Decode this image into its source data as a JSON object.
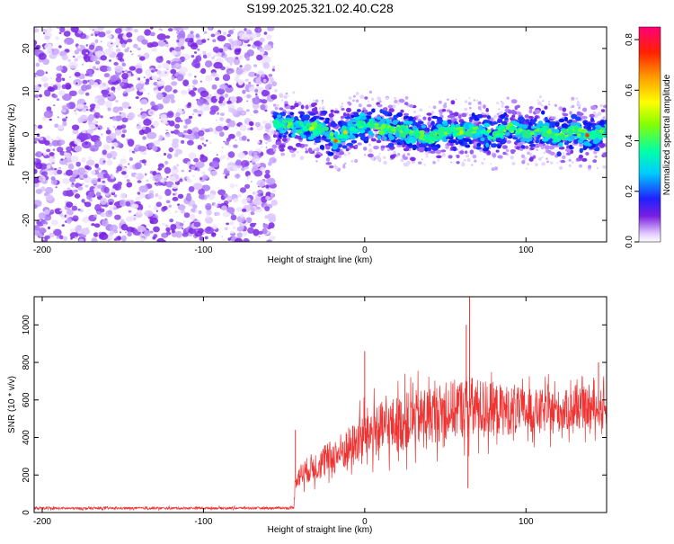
{
  "title": "S199.2025.321.02.40.C28",
  "chart_data": [
    {
      "type": "heatmap",
      "xlabel": "Height of straight line (km)",
      "ylabel": "Frequency (Hz)",
      "xlim": [
        -205,
        150
      ],
      "ylim": [
        -25,
        25
      ],
      "xticks": [
        -200,
        -100,
        0,
        100
      ],
      "xtick_labels": [
        "-200",
        "-100",
        "0",
        "100"
      ],
      "yticks": [
        -20,
        -10,
        0,
        10,
        20
      ],
      "ytick_labels": [
        "-20",
        "-10",
        "0",
        "10",
        "20"
      ],
      "noise_region_x": [
        -205,
        -56
      ],
      "signal_region_x": [
        -56,
        150
      ],
      "signal_track": {
        "x": [
          -56,
          -45,
          -35,
          -25,
          -18,
          -12,
          -5,
          0,
          10,
          20,
          30,
          40,
          50,
          60,
          70,
          80,
          90,
          100,
          110,
          120,
          130,
          140,
          150
        ],
        "freq": [
          2.5,
          2.0,
          1.5,
          1.0,
          -1.5,
          0.5,
          1.5,
          2.5,
          1.5,
          1.0,
          0.5,
          -1.0,
          1.0,
          0.5,
          1.0,
          -0.5,
          1.5,
          0.0,
          1.0,
          -0.5,
          1.0,
          -0.5,
          0.5
        ]
      },
      "colorbar": {
        "label": "Normalized spectral amplitude",
        "range": [
          0.0,
          0.85
        ],
        "ticks": [
          0.0,
          0.2,
          0.4,
          0.6,
          0.8
        ],
        "tick_labels": [
          "0.0",
          "0.2",
          "0.4",
          "0.6",
          "0.8"
        ]
      }
    },
    {
      "type": "line",
      "xlabel": "Height of straight line (km)",
      "ylabel": "SNR (10 * v/v)",
      "xlim": [
        -205,
        150
      ],
      "ylim": [
        0,
        1150
      ],
      "xticks": [
        -200,
        -100,
        0,
        100
      ],
      "xtick_labels": [
        "-200",
        "-100",
        "0",
        "100"
      ],
      "yticks": [
        0,
        200,
        400,
        600,
        800,
        1000
      ],
      "ytick_labels": [
        "0",
        "200",
        "400",
        "600",
        "800",
        "1000"
      ],
      "series": [
        {
          "name": "SNR",
          "color": "#ee3333",
          "envelope": {
            "x": [
              -205,
              -60,
              -44,
              -43,
              -35,
              -25,
              -15,
              -5,
              0,
              20,
              40,
              60,
              66,
              80,
              100,
              120,
              140,
              150
            ],
            "mean": [
              22,
              24,
              25,
              180,
              230,
              270,
              320,
              370,
              420,
              470,
              520,
              560,
              560,
              550,
              540,
              540,
              555,
              560
            ],
            "amp": [
              8,
              8,
              8,
              70,
              90,
              110,
              130,
              150,
              170,
              190,
              190,
              200,
              210,
              180,
              150,
              140,
              130,
              120
            ]
          },
          "spikes": [
            {
              "x": -43,
              "y": 440
            },
            {
              "x": 0,
              "y": 860
            },
            {
              "x": 65,
              "y": 1150
            },
            {
              "x": 63,
              "y": 1000
            },
            {
              "x": 145,
              "y": 800
            },
            {
              "x": 64,
              "y": 130
            }
          ]
        }
      ]
    }
  ]
}
